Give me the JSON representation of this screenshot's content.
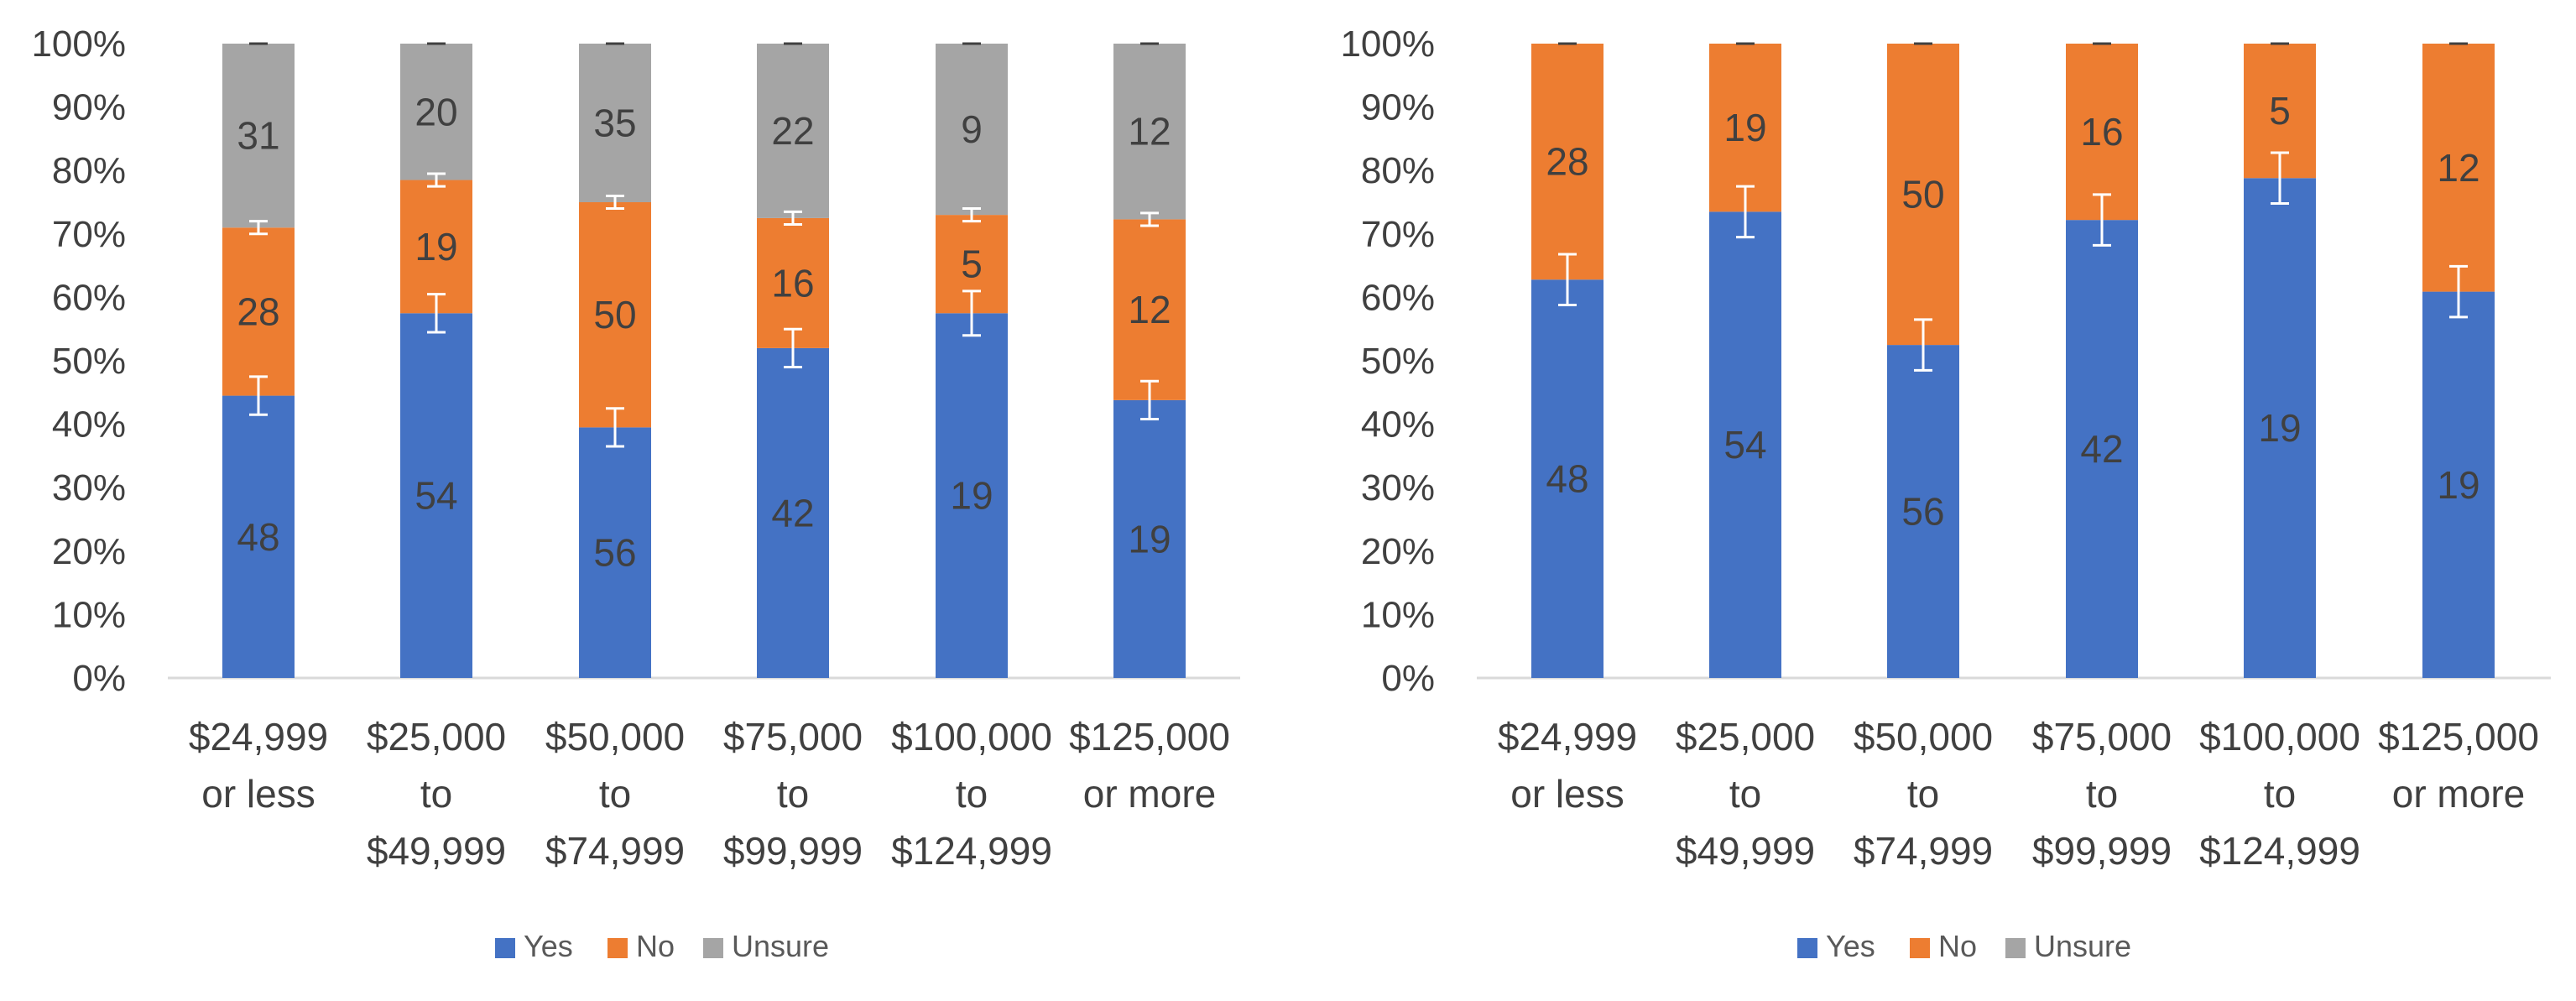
{
  "colors": {
    "yes": "#4472C4",
    "no": "#ED7D31",
    "unsure": "#A5A5A5",
    "axis": "#D9D9D9",
    "label": "#404040",
    "legend_text": "#595959",
    "errorbar": "#FFFFFF",
    "errorbar_top": "#404040"
  },
  "legend_labels": [
    "Yes",
    "No",
    "Unsure"
  ],
  "chart_data": [
    {
      "type": "bar",
      "stacked": "percent",
      "categories": [
        [
          "$24,999",
          "or less"
        ],
        [
          "$25,000",
          "to",
          "$49,999"
        ],
        [
          "$50,000",
          "to",
          "$74,999"
        ],
        [
          "$75,000",
          "to",
          "$99,999"
        ],
        [
          "$100,000",
          "to",
          "$124,999"
        ],
        [
          "$125,000",
          "or more"
        ]
      ],
      "series": [
        {
          "name": "Yes",
          "values": [
            44.5,
            57.5,
            39.5,
            52.0,
            57.5,
            43.8
          ],
          "labels": [
            "48",
            "54",
            "56",
            "42",
            "19",
            "19"
          ],
          "error": [
            3.0,
            3.0,
            3.0,
            3.0,
            3.5,
            3.0
          ]
        },
        {
          "name": "No",
          "values": [
            26.5,
            21.0,
            35.5,
            20.5,
            15.5,
            28.5
          ],
          "labels": [
            "28",
            "19",
            "50",
            "16",
            "5",
            "12"
          ],
          "error": [
            1.0,
            1.0,
            1.0,
            1.0,
            1.0,
            1.0
          ]
        },
        {
          "name": "Unsure",
          "values": [
            29.0,
            21.5,
            25.0,
            27.5,
            27.0,
            27.7
          ],
          "labels": [
            "31",
            "20",
            "35",
            "22",
            "9",
            "12"
          ],
          "error": [
            0,
            0,
            0,
            0,
            0,
            0
          ]
        }
      ],
      "ylim": [
        0,
        100
      ],
      "yticks": [
        "0%",
        "10%",
        "20%",
        "30%",
        "40%",
        "50%",
        "60%",
        "70%",
        "80%",
        "90%",
        "100%"
      ],
      "title": "",
      "xlabel": "",
      "ylabel": "",
      "legend": "bottom"
    },
    {
      "type": "bar",
      "stacked": "percent",
      "categories": [
        [
          "$24,999",
          "or less"
        ],
        [
          "$25,000",
          "to",
          "$49,999"
        ],
        [
          "$50,000",
          "to",
          "$74,999"
        ],
        [
          "$75,000",
          "to",
          "$99,999"
        ],
        [
          "$100,000",
          "to",
          "$124,999"
        ],
        [
          "$125,000",
          "or more"
        ]
      ],
      "series": [
        {
          "name": "Yes",
          "values": [
            62.8,
            73.5,
            52.5,
            72.2,
            78.8,
            60.9
          ],
          "labels": [
            "48",
            "54",
            "56",
            "42",
            "19",
            "19"
          ],
          "error": [
            4.0,
            4.0,
            4.0,
            4.0,
            4.0,
            4.0
          ]
        },
        {
          "name": "No",
          "values": [
            37.2,
            26.5,
            47.5,
            27.8,
            21.2,
            39.1
          ],
          "labels": [
            "28",
            "19",
            "50",
            "16",
            "5",
            "12"
          ],
          "error": [
            0,
            0,
            0,
            0,
            0,
            0
          ]
        },
        {
          "name": "Unsure",
          "values": [
            0,
            0,
            0,
            0,
            0,
            0
          ],
          "labels": [
            "",
            "",
            "",
            "",
            "",
            ""
          ],
          "error": [
            0,
            0,
            0,
            0,
            0,
            0
          ]
        }
      ],
      "ylim": [
        0,
        100
      ],
      "yticks": [
        "0%",
        "10%",
        "20%",
        "30%",
        "40%",
        "50%",
        "60%",
        "70%",
        "80%",
        "90%",
        "100%"
      ],
      "title": "",
      "xlabel": "",
      "ylabel": "",
      "legend": "bottom"
    }
  ]
}
